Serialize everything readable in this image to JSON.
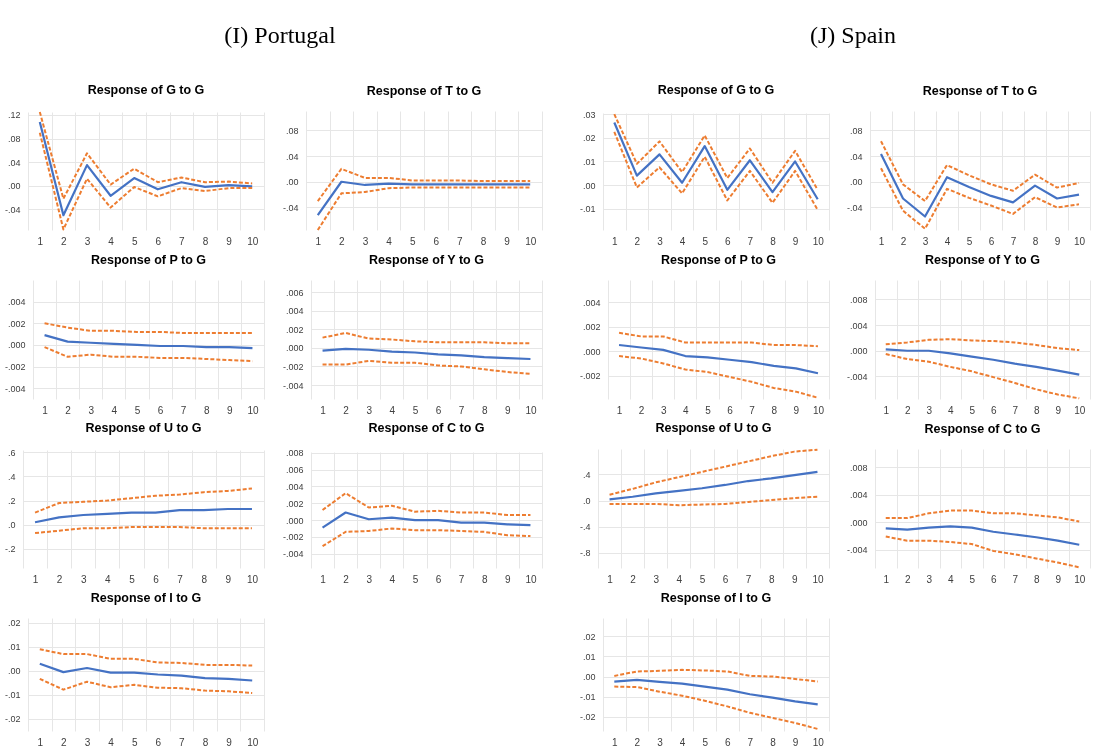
{
  "chart_data": [
    {
      "type": "other",
      "title": "(I) Portugal"
    },
    {
      "type": "line",
      "title": "Response of G to G",
      "categories": [
        "1",
        "2",
        "3",
        "4",
        "5",
        "6",
        "7",
        "8",
        "9",
        "10"
      ],
      "ylim": [
        -0.075,
        0.125
      ],
      "yticks": [
        {
          "value": -0.04,
          "label": "-.04"
        },
        {
          "value": 0,
          "label": ".00"
        },
        {
          "value": 0.04,
          "label": ".04"
        },
        {
          "value": 0.08,
          "label": ".08"
        },
        {
          "value": 0.12,
          "label": ".12"
        }
      ],
      "grid": true,
      "series": [
        {
          "color": "#4472c4",
          "values": [
            0.108,
            -0.05,
            0.035,
            -0.017,
            0.013,
            -0.006,
            0.006,
            -0.002,
            0.001,
            -0.001
          ]
        },
        {
          "color": "#ed7d31",
          "line_style": "dashed",
          "values": [
            0.125,
            -0.022,
            0.055,
            0.002,
            0.029,
            0.006,
            0.014,
            0.006,
            0.007,
            0.004
          ]
        },
        {
          "color": "#ed7d31",
          "line_style": "dashed",
          "values": [
            0.09,
            -0.074,
            0.012,
            -0.037,
            -0.002,
            -0.018,
            -0.004,
            -0.009,
            -0.004,
            -0.004
          ]
        }
      ]
    },
    {
      "type": "line",
      "title": "Response of T to G",
      "categories": [
        "1",
        "2",
        "3",
        "4",
        "5",
        "6",
        "7",
        "8",
        "9",
        "10"
      ],
      "ylim": [
        -0.075,
        0.11
      ],
      "yticks": [
        {
          "value": -0.04,
          "label": "-.04"
        },
        {
          "value": 0,
          "label": ".00"
        },
        {
          "value": 0.04,
          "label": ".04"
        },
        {
          "value": 0.08,
          "label": ".08"
        }
      ],
      "grid": true,
      "series": [
        {
          "color": "#4472c4",
          "values": [
            -0.052,
            0.0,
            -0.005,
            -0.003,
            -0.004,
            -0.004,
            -0.004,
            -0.004,
            -0.004,
            -0.004
          ]
        },
        {
          "color": "#ed7d31",
          "line_style": "dashed",
          "values": [
            -0.03,
            0.02,
            0.006,
            0.006,
            0.002,
            0.002,
            0.002,
            0.001,
            0.001,
            0.001
          ]
        },
        {
          "color": "#ed7d31",
          "line_style": "dashed",
          "values": [
            -0.075,
            -0.018,
            -0.016,
            -0.01,
            -0.009,
            -0.009,
            -0.009,
            -0.009,
            -0.009,
            -0.009
          ]
        }
      ]
    },
    {
      "type": "line",
      "title": "Response of P to G",
      "categories": [
        "1",
        "2",
        "3",
        "4",
        "5",
        "6",
        "7",
        "8",
        "9",
        "10"
      ],
      "ylim": [
        -0.005,
        0.006
      ],
      "yticks": [
        {
          "value": -0.004,
          "label": "-.004"
        },
        {
          "value": -0.002,
          "label": "-.002"
        },
        {
          "value": 0,
          "label": ".000"
        },
        {
          "value": 0.002,
          "label": ".002"
        },
        {
          "value": 0.004,
          "label": ".004"
        }
      ],
      "grid": true,
      "series": [
        {
          "color": "#4472c4",
          "values": [
            0.0009,
            0.0003,
            0.0002,
            0.0001,
            0.0,
            -0.0001,
            -0.0001,
            -0.0002,
            -0.0002,
            -0.0003
          ]
        },
        {
          "color": "#ed7d31",
          "line_style": "dashed",
          "values": [
            0.002,
            0.0016,
            0.0013,
            0.0013,
            0.0012,
            0.0012,
            0.0011,
            0.0011,
            0.0011,
            0.0011
          ]
        },
        {
          "color": "#ed7d31",
          "line_style": "dashed",
          "values": [
            -0.0002,
            -0.0011,
            -0.0009,
            -0.0011,
            -0.0011,
            -0.0012,
            -0.0012,
            -0.0013,
            -0.0014,
            -0.0015
          ]
        }
      ]
    },
    {
      "type": "line",
      "title": "Response of Y to G",
      "categories": [
        "1",
        "2",
        "3",
        "4",
        "5",
        "6",
        "7",
        "8",
        "9",
        "10"
      ],
      "ylim": [
        -0.0055,
        0.0073
      ],
      "yticks": [
        {
          "value": -0.004,
          "label": "-.004"
        },
        {
          "value": -0.002,
          "label": "-.002"
        },
        {
          "value": 0,
          "label": ".000"
        },
        {
          "value": 0.002,
          "label": ".002"
        },
        {
          "value": 0.004,
          "label": ".004"
        },
        {
          "value": 0.006,
          "label": ".006"
        }
      ],
      "grid": true,
      "series": [
        {
          "color": "#4472c4",
          "values": [
            -0.0003,
            -0.0001,
            -0.0002,
            -0.0004,
            -0.0005,
            -0.0007,
            -0.0008,
            -0.001,
            -0.0011,
            -0.0012
          ]
        },
        {
          "color": "#ed7d31",
          "line_style": "dashed",
          "values": [
            0.0011,
            0.0016,
            0.001,
            0.0009,
            0.0007,
            0.0006,
            0.0006,
            0.0006,
            0.0005,
            0.0005
          ]
        },
        {
          "color": "#ed7d31",
          "line_style": "dashed",
          "values": [
            -0.0018,
            -0.0018,
            -0.0014,
            -0.0016,
            -0.0016,
            -0.0019,
            -0.002,
            -0.0023,
            -0.0026,
            -0.0028
          ]
        }
      ]
    },
    {
      "type": "line",
      "title": "Response of U to G",
      "categories": [
        "1",
        "2",
        "3",
        "4",
        "5",
        "6",
        "7",
        "8",
        "9",
        "10"
      ],
      "ylim": [
        -0.36,
        0.62
      ],
      "yticks": [
        {
          "value": -0.2,
          "label": "-.2"
        },
        {
          "value": 0,
          "label": ".0"
        },
        {
          "value": 0.2,
          "label": ".2"
        },
        {
          "value": 0.4,
          "label": ".4"
        },
        {
          "value": 0.6,
          "label": ".6"
        }
      ],
      "grid": true,
      "series": [
        {
          "color": "#4472c4",
          "values": [
            0.02,
            0.06,
            0.08,
            0.09,
            0.1,
            0.1,
            0.12,
            0.12,
            0.13,
            0.13
          ]
        },
        {
          "color": "#ed7d31",
          "line_style": "dashed",
          "values": [
            0.1,
            0.18,
            0.19,
            0.2,
            0.22,
            0.24,
            0.25,
            0.27,
            0.28,
            0.3
          ]
        },
        {
          "color": "#ed7d31",
          "line_style": "dashed",
          "values": [
            -0.07,
            -0.05,
            -0.03,
            -0.03,
            -0.02,
            -0.02,
            -0.02,
            -0.03,
            -0.03,
            -0.03
          ]
        }
      ]
    },
    {
      "type": "line",
      "title": "Response of C to G",
      "categories": [
        "1",
        "2",
        "3",
        "4",
        "5",
        "6",
        "7",
        "8",
        "9",
        "10"
      ],
      "ylim": [
        -0.0057,
        0.0081
      ],
      "yticks": [
        {
          "value": -0.004,
          "label": "-.004"
        },
        {
          "value": -0.002,
          "label": "-.002"
        },
        {
          "value": 0,
          "label": ".000"
        },
        {
          "value": 0.002,
          "label": ".002"
        },
        {
          "value": 0.004,
          "label": ".004"
        },
        {
          "value": 0.006,
          "label": ".006"
        },
        {
          "value": 0.008,
          "label": ".008"
        }
      ],
      "grid": true,
      "series": [
        {
          "color": "#4472c4",
          "values": [
            -0.0009,
            0.0009,
            0.0001,
            0.0003,
            0.0,
            0.0,
            -0.0003,
            -0.0003,
            -0.0005,
            -0.0006
          ]
        },
        {
          "color": "#ed7d31",
          "line_style": "dashed",
          "values": [
            0.0012,
            0.0032,
            0.0015,
            0.0017,
            0.001,
            0.0011,
            0.0009,
            0.0009,
            0.0006,
            0.0006
          ]
        },
        {
          "color": "#ed7d31",
          "line_style": "dashed",
          "values": [
            -0.0031,
            -0.0014,
            -0.0013,
            -0.001,
            -0.0012,
            -0.0012,
            -0.0013,
            -0.0014,
            -0.0018,
            -0.0019
          ]
        }
      ]
    },
    {
      "type": "line",
      "title": "Response of I to G",
      "categories": [
        "1",
        "2",
        "3",
        "4",
        "5",
        "6",
        "7",
        "8",
        "9",
        "10"
      ],
      "ylim": [
        -0.025,
        0.022
      ],
      "yticks": [
        {
          "value": -0.02,
          "label": "-.02"
        },
        {
          "value": -0.01,
          "label": "-.01"
        },
        {
          "value": 0,
          "label": ".00"
        },
        {
          "value": 0.01,
          "label": ".01"
        },
        {
          "value": 0.02,
          "label": ".02"
        }
      ],
      "grid": true,
      "series": [
        {
          "color": "#4472c4",
          "values": [
            0.003,
            -0.0005,
            0.0012,
            -0.0007,
            -0.0007,
            -0.0015,
            -0.002,
            -0.003,
            -0.0033,
            -0.004
          ]
        },
        {
          "color": "#ed7d31",
          "line_style": "dashed",
          "values": [
            0.009,
            0.007,
            0.007,
            0.005,
            0.005,
            0.0035,
            0.0033,
            0.0025,
            0.0025,
            0.0022
          ]
        },
        {
          "color": "#ed7d31",
          "line_style": "dashed",
          "values": [
            -0.0033,
            -0.0078,
            -0.0045,
            -0.0068,
            -0.0058,
            -0.007,
            -0.0072,
            -0.0082,
            -0.0085,
            -0.0092
          ]
        }
      ]
    },
    {
      "type": "other",
      "title": "(J) Spain"
    },
    {
      "type": "line",
      "title": "Response of G to G",
      "categories": [
        "1",
        "2",
        "3",
        "4",
        "5",
        "6",
        "7",
        "8",
        "9",
        "10"
      ],
      "ylim": [
        -0.019,
        0.0305
      ],
      "yticks": [
        {
          "value": -0.01,
          "label": "-.01"
        },
        {
          "value": 0,
          "label": ".00"
        },
        {
          "value": 0.01,
          "label": ".01"
        },
        {
          "value": 0.02,
          "label": ".02"
        },
        {
          "value": 0.03,
          "label": ".03"
        }
      ],
      "grid": true,
      "series": [
        {
          "color": "#4472c4",
          "values": [
            0.0265,
            0.004,
            0.013,
            0.001,
            0.0165,
            -0.002,
            0.0105,
            -0.003,
            0.01,
            -0.006
          ]
        },
        {
          "color": "#ed7d31",
          "line_style": "dashed",
          "values": [
            0.03,
            0.009,
            0.0185,
            0.0055,
            0.021,
            0.003,
            0.0155,
            0.001,
            0.0145,
            -0.002
          ]
        },
        {
          "color": "#ed7d31",
          "line_style": "dashed",
          "values": [
            0.0225,
            -0.001,
            0.0075,
            -0.0035,
            0.012,
            -0.0065,
            0.006,
            -0.0075,
            0.006,
            -0.0105
          ]
        }
      ]
    },
    {
      "type": "line",
      "title": "Response of T to G",
      "categories": [
        "1",
        "2",
        "3",
        "4",
        "5",
        "6",
        "7",
        "8",
        "9",
        "10"
      ],
      "ylim": [
        -0.075,
        0.11
      ],
      "yticks": [
        {
          "value": -0.04,
          "label": "-.04"
        },
        {
          "value": 0,
          "label": ".00"
        },
        {
          "value": 0.04,
          "label": ".04"
        },
        {
          "value": 0.08,
          "label": ".08"
        }
      ],
      "grid": true,
      "series": [
        {
          "color": "#4472c4",
          "values": [
            0.043,
            -0.026,
            -0.054,
            0.007,
            -0.008,
            -0.022,
            -0.032,
            -0.006,
            -0.026,
            -0.02
          ]
        },
        {
          "color": "#ed7d31",
          "line_style": "dashed",
          "values": [
            0.063,
            -0.004,
            -0.03,
            0.026,
            0.01,
            -0.004,
            -0.014,
            0.011,
            -0.009,
            -0.002
          ]
        },
        {
          "color": "#ed7d31",
          "line_style": "dashed",
          "values": [
            0.021,
            -0.045,
            -0.073,
            -0.011,
            -0.025,
            -0.037,
            -0.05,
            -0.024,
            -0.04,
            -0.035
          ]
        }
      ]
    },
    {
      "type": "line",
      "title": "Response of P to G",
      "categories": [
        "1",
        "2",
        "3",
        "4",
        "5",
        "6",
        "7",
        "8",
        "9",
        "10"
      ],
      "ylim": [
        -0.0039,
        0.0058
      ],
      "yticks": [
        {
          "value": -0.002,
          "label": "-.002"
        },
        {
          "value": 0,
          "label": ".000"
        },
        {
          "value": 0.002,
          "label": ".002"
        },
        {
          "value": 0.004,
          "label": ".004"
        }
      ],
      "grid": true,
      "series": [
        {
          "color": "#4472c4",
          "values": [
            0.0005,
            0.0003,
            0.0001,
            -0.0004,
            -0.0005,
            -0.0007,
            -0.0009,
            -0.0012,
            -0.0014,
            -0.0018
          ]
        },
        {
          "color": "#ed7d31",
          "line_style": "dashed",
          "values": [
            0.0015,
            0.0012,
            0.0012,
            0.0007,
            0.0007,
            0.0007,
            0.0007,
            0.0005,
            0.0005,
            0.0004
          ]
        },
        {
          "color": "#ed7d31",
          "line_style": "dashed",
          "values": [
            -0.0004,
            -0.0006,
            -0.001,
            -0.0015,
            -0.0017,
            -0.0021,
            -0.0025,
            -0.003,
            -0.0033,
            -0.0038
          ]
        }
      ]
    },
    {
      "type": "line",
      "title": "Response of Y to G",
      "categories": [
        "1",
        "2",
        "3",
        "4",
        "5",
        "6",
        "7",
        "8",
        "9",
        "10"
      ],
      "ylim": [
        -0.0075,
        0.011
      ],
      "yticks": [
        {
          "value": -0.004,
          "label": "-.004"
        },
        {
          "value": 0,
          "label": ".000"
        },
        {
          "value": 0.004,
          "label": ".004"
        },
        {
          "value": 0.008,
          "label": ".008"
        }
      ],
      "grid": true,
      "series": [
        {
          "color": "#4472c4",
          "values": [
            0.0002,
            0.0,
            0.0,
            -0.0004,
            -0.0009,
            -0.0014,
            -0.002,
            -0.0025,
            -0.0031,
            -0.0037
          ]
        },
        {
          "color": "#ed7d31",
          "line_style": "dashed",
          "values": [
            0.001,
            0.0013,
            0.0017,
            0.0018,
            0.0016,
            0.0015,
            0.0013,
            0.0009,
            0.0004,
            0.0001
          ]
        },
        {
          "color": "#ed7d31",
          "line_style": "dashed",
          "values": [
            -0.0005,
            -0.0013,
            -0.0017,
            -0.0025,
            -0.0032,
            -0.0041,
            -0.005,
            -0.006,
            -0.0068,
            -0.0074
          ]
        }
      ]
    },
    {
      "type": "line",
      "title": "Response of U to G",
      "categories": [
        "1",
        "2",
        "3",
        "4",
        "5",
        "6",
        "7",
        "8",
        "9",
        "10"
      ],
      "ylim": [
        -1.03,
        0.79
      ],
      "yticks": [
        {
          "value": -0.8,
          "label": "-.8"
        },
        {
          "value": -0.4,
          "label": "-.4"
        },
        {
          "value": 0,
          "label": ".0"
        },
        {
          "value": 0.4,
          "label": ".4"
        }
      ],
      "grid": true,
      "series": [
        {
          "color": "#4472c4",
          "values": [
            0.02,
            0.06,
            0.11,
            0.15,
            0.19,
            0.24,
            0.3,
            0.34,
            0.39,
            0.44
          ]
        },
        {
          "color": "#ed7d31",
          "line_style": "dashed",
          "values": [
            0.09,
            0.18,
            0.28,
            0.36,
            0.44,
            0.52,
            0.6,
            0.68,
            0.75,
            0.78
          ]
        },
        {
          "color": "#ed7d31",
          "line_style": "dashed",
          "values": [
            -0.05,
            -0.05,
            -0.05,
            -0.07,
            -0.06,
            -0.05,
            -0.02,
            0.01,
            0.04,
            0.06
          ]
        }
      ]
    },
    {
      "type": "line",
      "title": "Response of C to G",
      "categories": [
        "1",
        "2",
        "3",
        "4",
        "5",
        "6",
        "7",
        "8",
        "9",
        "10"
      ],
      "ylim": [
        -0.0067,
        0.0107
      ],
      "yticks": [
        {
          "value": -0.004,
          "label": "-.004"
        },
        {
          "value": 0,
          "label": ".000"
        },
        {
          "value": 0.004,
          "label": ".004"
        },
        {
          "value": 0.008,
          "label": ".008"
        }
      ],
      "grid": true,
      "series": [
        {
          "color": "#4472c4",
          "values": [
            -0.0009,
            -0.0011,
            -0.0008,
            -0.0006,
            -0.0008,
            -0.0014,
            -0.0018,
            -0.0022,
            -0.0027,
            -0.0033
          ]
        },
        {
          "color": "#ed7d31",
          "line_style": "dashed",
          "values": [
            0.0006,
            0.0006,
            0.0013,
            0.0017,
            0.0017,
            0.0013,
            0.0013,
            0.001,
            0.0007,
            0.0001
          ]
        },
        {
          "color": "#ed7d31",
          "line_style": "dashed",
          "values": [
            -0.0021,
            -0.0027,
            -0.0027,
            -0.0029,
            -0.0032,
            -0.0042,
            -0.0047,
            -0.0053,
            -0.0059,
            -0.0066
          ]
        }
      ]
    },
    {
      "type": "line",
      "title": "Response of I to G",
      "categories": [
        "1",
        "2",
        "3",
        "4",
        "5",
        "6",
        "7",
        "8",
        "9",
        "10"
      ],
      "ylim": [
        -0.027,
        0.029
      ],
      "yticks": [
        {
          "value": -0.02,
          "label": "-.02"
        },
        {
          "value": -0.01,
          "label": "-.01"
        },
        {
          "value": 0,
          "label": ".00"
        },
        {
          "value": 0.01,
          "label": ".01"
        },
        {
          "value": 0.02,
          "label": ".02"
        }
      ],
      "grid": true,
      "series": [
        {
          "color": "#4472c4",
          "values": [
            -0.0025,
            -0.0017,
            -0.0027,
            -0.0035,
            -0.005,
            -0.0065,
            -0.0088,
            -0.0105,
            -0.0123,
            -0.0138
          ]
        },
        {
          "color": "#ed7d31",
          "line_style": "dashed",
          "values": [
            0.0003,
            0.0025,
            0.0028,
            0.0033,
            0.003,
            0.0025,
            0.0003,
            0.0,
            -0.0012,
            -0.0025
          ]
        },
        {
          "color": "#ed7d31",
          "line_style": "dashed",
          "values": [
            -0.005,
            -0.0052,
            -0.0075,
            -0.0095,
            -0.012,
            -0.0148,
            -0.018,
            -0.0205,
            -0.023,
            -0.026
          ]
        }
      ]
    }
  ]
}
